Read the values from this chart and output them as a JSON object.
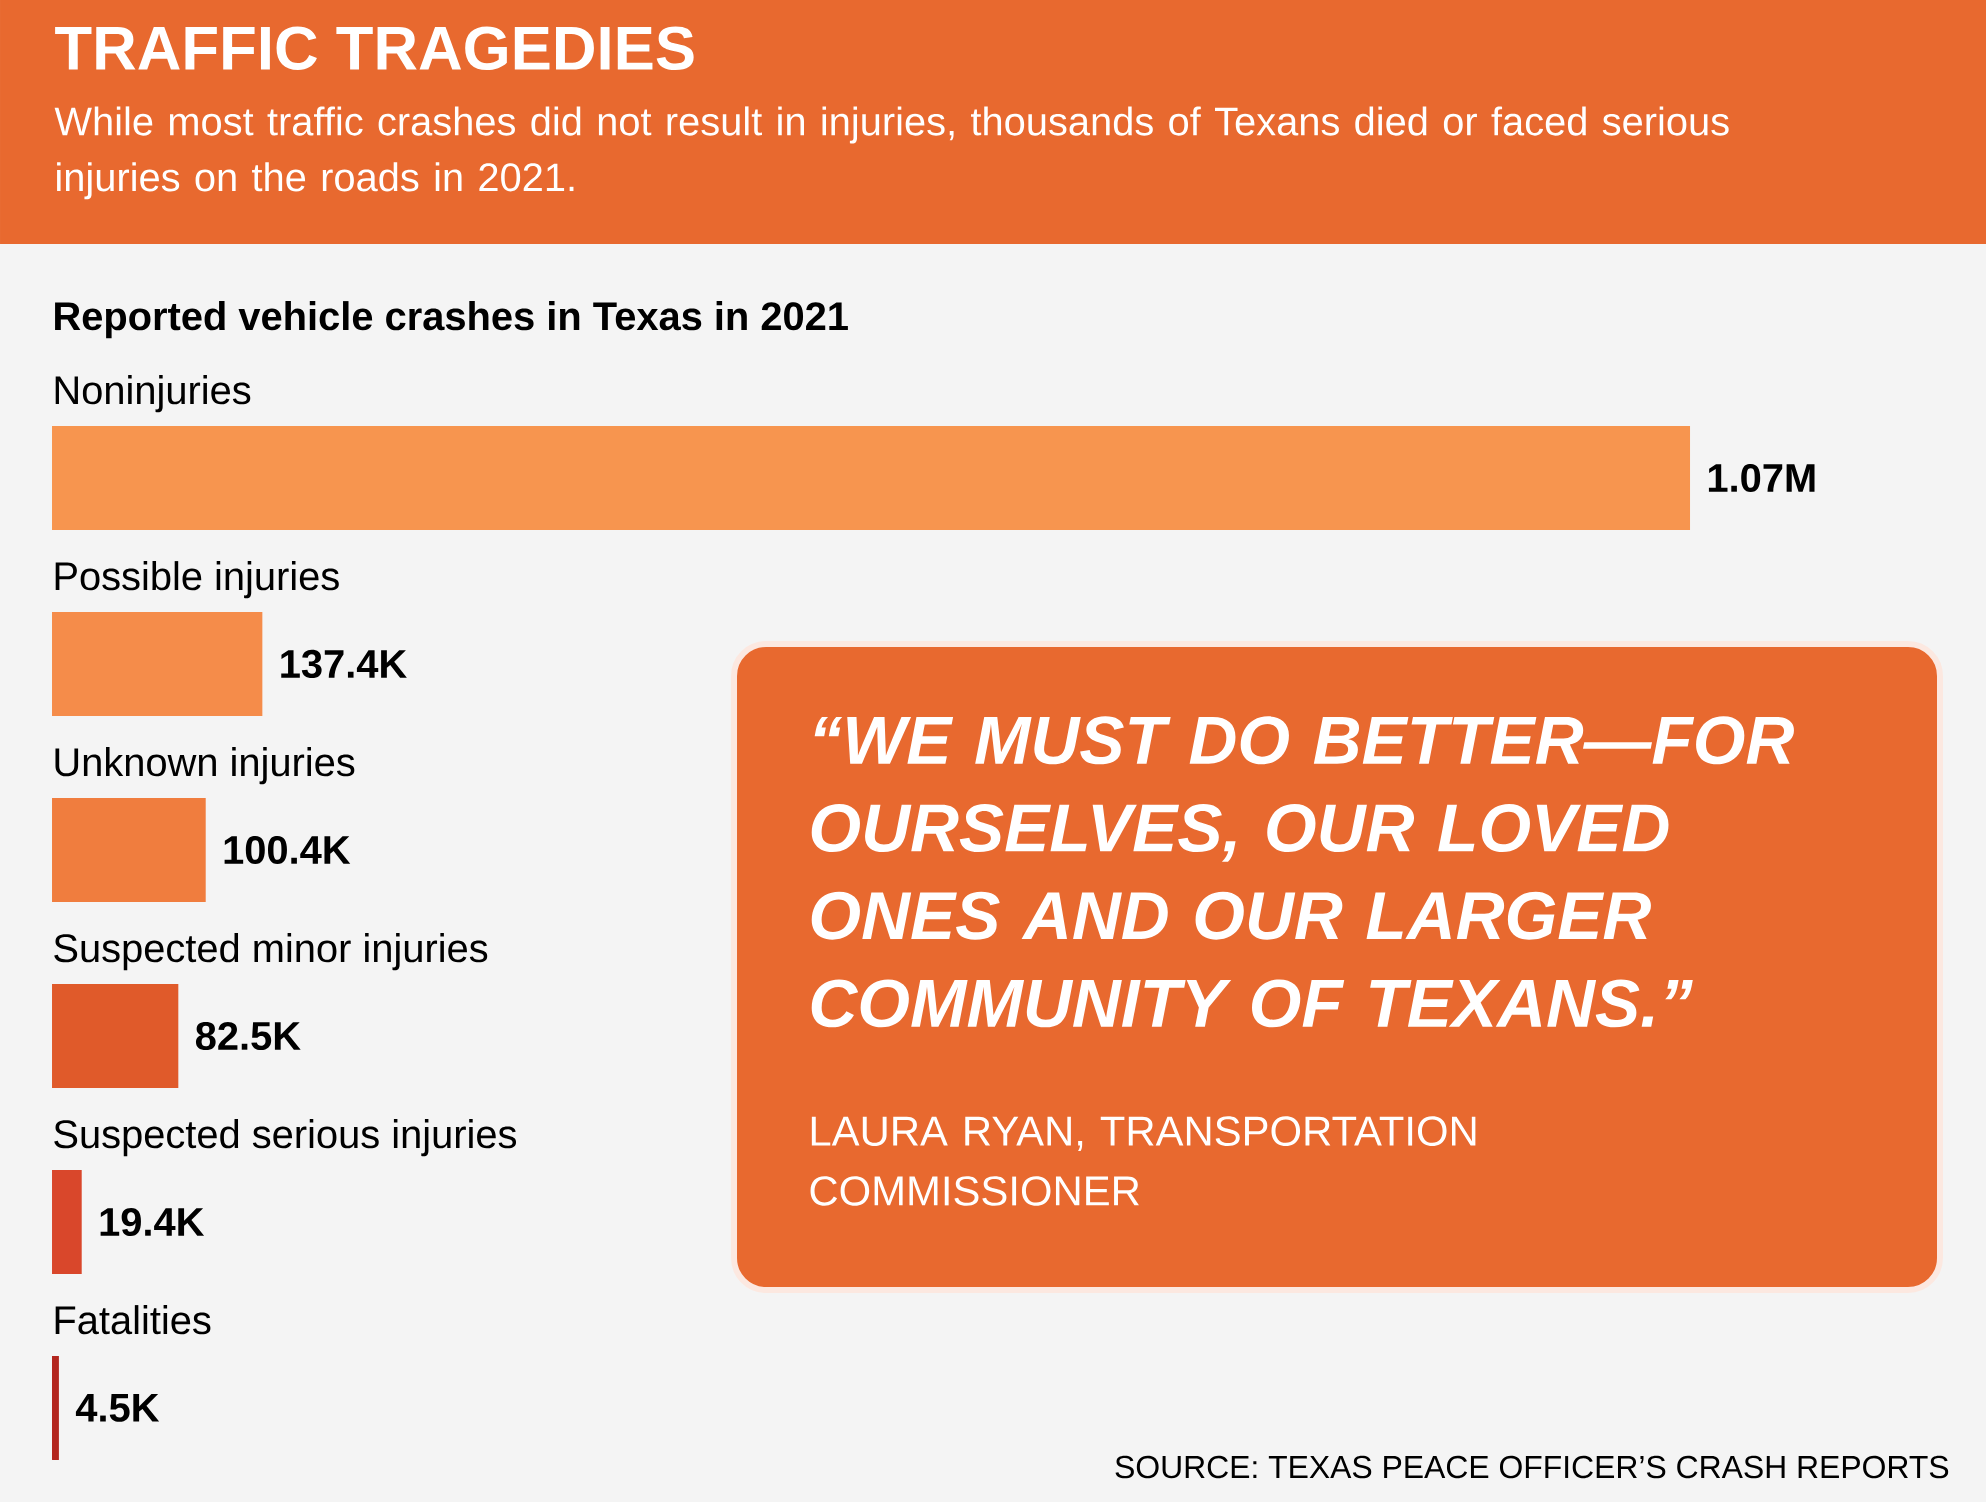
{
  "chart_data": {
    "type": "bar",
    "orientation": "horizontal",
    "title": "TRAFFIC TRAGEDIES",
    "subtitle": "While most traffic crashes did not result in injuries, thousands of Texans died or faced serious injuries on the roads in 2021.",
    "categories": [
      "Noninjuries",
      "Possible injuries",
      "Unknown injuries",
      "Suspected minor injuries",
      "Suspected serious injuries",
      "Fatalities"
    ],
    "values": [
      1070000,
      137400,
      100400,
      82500,
      19400,
      4500
    ],
    "value_labels": [
      "1.07M",
      "137.4K",
      "100.4K",
      "82.5K",
      "19.4K",
      "4.5K"
    ],
    "colors": [
      "#f7954f",
      "#f58c4a",
      "#f07d3e",
      "#e05a2a",
      "#d9472b",
      "#b3261e"
    ],
    "tick_labels": false,
    "annotations": [
      "Reported vehicle crashes in Texas in 2021",
      "“WE MUST DO BETTER—FOR OURSELVES, OUR LOVED ONES AND OUR LARGER COMMUNITY OF TEXANS.”",
      "LAURA RYAN, TRANSPORTATION COMMISSIONER",
      "SOURCE: TEXAS PEACE OFFICER’S CRASH REPORTS"
    ]
  }
}
